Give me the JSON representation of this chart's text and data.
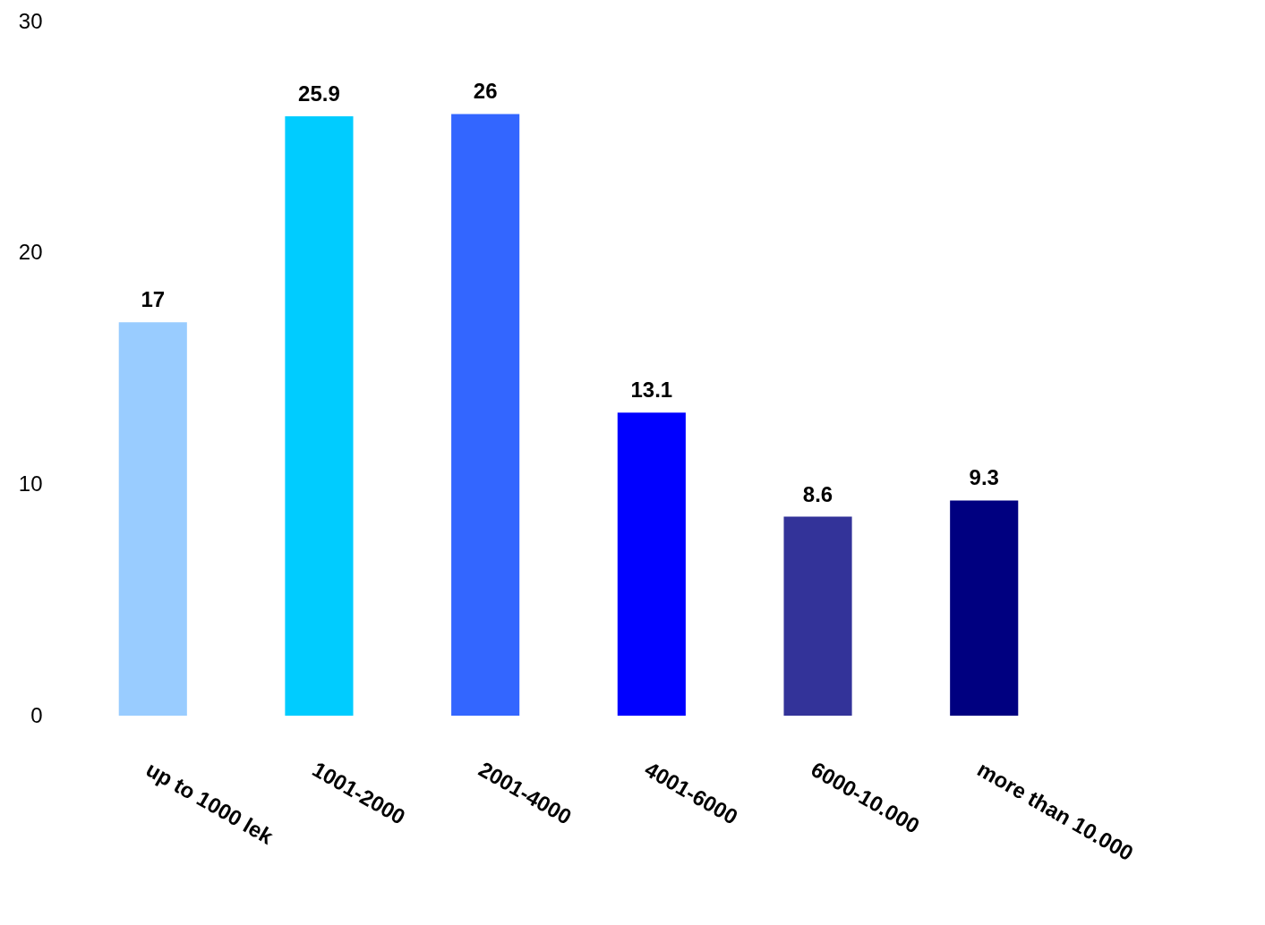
{
  "chart_data": {
    "type": "bar",
    "categories": [
      "up to 1000  lek",
      "1001-2000",
      "2001-4000",
      "4001-6000",
      "6000-10.000",
      "more than 10.000"
    ],
    "values": [
      17,
      25.9,
      26,
      13.1,
      8.6,
      9.3
    ],
    "colors": [
      "#99ccff",
      "#00ccff",
      "#3366ff",
      "#0000ff",
      "#333399",
      "#000080"
    ],
    "ylim": [
      0,
      30
    ],
    "yticks": [
      0,
      10,
      20,
      30
    ],
    "grid": false,
    "data_labels": true
  }
}
